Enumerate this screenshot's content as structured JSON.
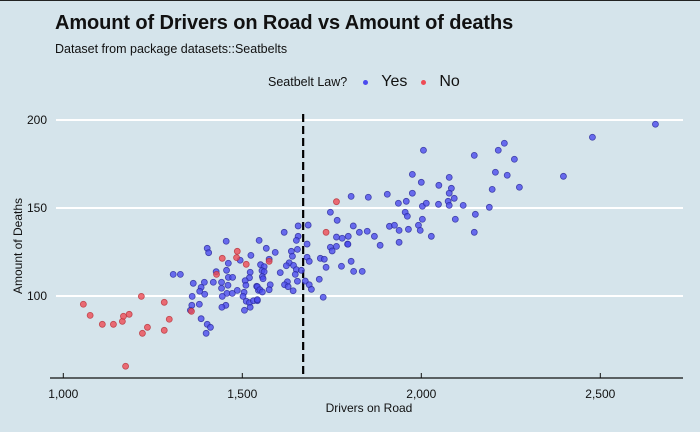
{
  "chart_data": {
    "type": "scatter",
    "title": "Amount of Drivers on Road vs Amount of deaths",
    "subtitle": "Dataset from package datasets::Seatbelts",
    "xlabel": "Drivers on Road",
    "ylabel": "Amount of Deaths",
    "xlim": [
      978,
      2720
    ],
    "ylim": [
      54,
      204
    ],
    "x_ticks": [
      1000,
      1500,
      2000,
      2500
    ],
    "x_tick_labels": [
      "1,000",
      "1,500",
      "2,000",
      "2,500"
    ],
    "y_ticks": [
      100,
      150,
      200
    ],
    "y_tick_labels": [
      "100",
      "150",
      "200"
    ],
    "grid": "horizontal major lines only",
    "legend": {
      "title": "Seatbelt Law?",
      "position": "top-center",
      "entries": [
        {
          "label": "Yes",
          "color": "#4b4bee"
        },
        {
          "label": "No",
          "color": "#ee4b55"
        }
      ]
    },
    "reference_line": {
      "orientation": "vertical",
      "x": 1670,
      "style": "dashed",
      "color": "#000000"
    },
    "series": [
      {
        "name": "Yes",
        "color": "#4b4bee",
        "points": [
          [
            1455,
            131.1
          ],
          [
            1402,
            127.1
          ],
          [
            1406,
            124.6
          ],
          [
            1494,
            120.3
          ],
          [
            1461,
            118.6
          ],
          [
            1524,
            123.1
          ],
          [
            1307,
            112.3
          ],
          [
            1327,
            112.3
          ],
          [
            1427,
            113.8
          ],
          [
            1456,
            114.6
          ],
          [
            1461,
            110.6
          ],
          [
            1473,
            110.6
          ],
          [
            1522,
            113.5
          ],
          [
            1520,
            110.4
          ],
          [
            1508,
            108.7
          ],
          [
            1363,
            107.2
          ],
          [
            1394,
            107.8
          ],
          [
            1419,
            107.8
          ],
          [
            1442,
            107.8
          ],
          [
            1385,
            104.9
          ],
          [
            1460,
            106.1
          ],
          [
            1510,
            106.1
          ],
          [
            1540,
            105.5
          ],
          [
            1381,
            102.7
          ],
          [
            1395,
            101.0
          ],
          [
            1442,
            104.4
          ],
          [
            1457,
            101.5
          ],
          [
            1472,
            101.5
          ],
          [
            1486,
            103.2
          ],
          [
            1505,
            102.1
          ],
          [
            1360,
            99.8
          ],
          [
            1444,
            99.8
          ],
          [
            1502,
            99.8
          ],
          [
            1545,
            103.2
          ],
          [
            1359,
            94.7
          ],
          [
            1380,
            95.3
          ],
          [
            1454,
            94.7
          ],
          [
            1443,
            93.6
          ],
          [
            1511,
            97.0
          ],
          [
            1520,
            96.2
          ],
          [
            1531,
            97.3
          ],
          [
            1542,
            97.3
          ],
          [
            1522,
            93.6
          ],
          [
            1506,
            91.9
          ],
          [
            1385,
            87.1
          ],
          [
            1402,
            83.9
          ],
          [
            1411,
            82.2
          ],
          [
            1399,
            78.8
          ],
          [
            1355,
            91.9
          ],
          [
            1746,
            147.6
          ],
          [
            1765,
            143.0
          ],
          [
            1810,
            139.8
          ],
          [
            1656,
            139.8
          ],
          [
            1684,
            140.3
          ],
          [
            1617,
            136.2
          ],
          [
            1656,
            133.9
          ],
          [
            1651,
            131.6
          ],
          [
            1763,
            133.5
          ],
          [
            1779,
            132.8
          ],
          [
            1794,
            129.5
          ],
          [
            1547,
            131.6
          ],
          [
            1681,
            129.5
          ],
          [
            1746,
            127.7
          ],
          [
            1763,
            128.2
          ],
          [
            1751,
            125.6
          ],
          [
            1567,
            127.1
          ],
          [
            1592,
            124.8
          ],
          [
            1637,
            125.4
          ],
          [
            1654,
            126.5
          ],
          [
            1640,
            122.6
          ],
          [
            1681,
            122.0
          ],
          [
            1687,
            119.7
          ],
          [
            1718,
            121.4
          ],
          [
            1729,
            120.9
          ],
          [
            1804,
            119.7
          ],
          [
            1575,
            120.9
          ],
          [
            1631,
            118.9
          ],
          [
            1623,
            117.2
          ],
          [
            1551,
            117.8
          ],
          [
            1561,
            116.7
          ],
          [
            1555,
            114.4
          ],
          [
            1561,
            113.8
          ],
          [
            1643,
            117.4
          ],
          [
            1651,
            115.0
          ],
          [
            1665,
            114.6
          ],
          [
            1734,
            116.3
          ],
          [
            1777,
            116.9
          ],
          [
            1811,
            114.0
          ],
          [
            1606,
            113.3
          ],
          [
            1648,
            112.3
          ],
          [
            1556,
            111.0
          ],
          [
            1558,
            109.8
          ],
          [
            1715,
            109.5
          ],
          [
            1654,
            108.4
          ],
          [
            1626,
            108.1
          ],
          [
            1618,
            106.4
          ],
          [
            1628,
            105.3
          ],
          [
            1676,
            108.5
          ],
          [
            1687,
            106.4
          ],
          [
            1578,
            106.4
          ],
          [
            1542,
            105.3
          ],
          [
            1549,
            103.6
          ],
          [
            1556,
            102.3
          ],
          [
            1575,
            103.6
          ],
          [
            1642,
            103.0
          ],
          [
            1693,
            103.8
          ],
          [
            1726,
            99.3
          ],
          [
            1542,
            97.9
          ],
          [
            1975,
            169.1
          ],
          [
            2000,
            164.6
          ],
          [
            2049,
            162.9
          ],
          [
            1804,
            156.6
          ],
          [
            1852,
            156.1
          ],
          [
            1905,
            157.8
          ],
          [
            1975,
            158.4
          ],
          [
            1936,
            152.7
          ],
          [
            1958,
            153.8
          ],
          [
            2003,
            151.0
          ],
          [
            2014,
            152.7
          ],
          [
            2048,
            152.1
          ],
          [
            1955,
            147.6
          ],
          [
            1961,
            145.3
          ],
          [
            2003,
            143.6
          ],
          [
            1911,
            139.6
          ],
          [
            1925,
            140.2
          ],
          [
            1992,
            140.2
          ],
          [
            1827,
            136.2
          ],
          [
            1849,
            136.8
          ],
          [
            1938,
            137.3
          ],
          [
            1964,
            137.9
          ],
          [
            1997,
            137.3
          ],
          [
            1869,
            133.9
          ],
          [
            2028,
            133.9
          ],
          [
            1796,
            133.9
          ],
          [
            1795,
            129.4
          ],
          [
            1885,
            128.8
          ],
          [
            1938,
            130.5
          ],
          [
            1835,
            114.0
          ],
          [
            2006,
            182.8
          ],
          [
            2148,
            179.9
          ],
          [
            2078,
            167.4
          ],
          [
            2084,
            161.2
          ],
          [
            2078,
            158.4
          ],
          [
            2092,
            155.5
          ],
          [
            2075,
            153.8
          ],
          [
            2078,
            151.5
          ],
          [
            2117,
            151.5
          ],
          [
            2095,
            143.6
          ],
          [
            2151,
            146.4
          ],
          [
            2148,
            136.2
          ],
          [
            2654,
            197.6
          ],
          [
            2478,
            190.2
          ],
          [
            2232,
            186.8
          ],
          [
            2215,
            182.8
          ],
          [
            2260,
            177.7
          ],
          [
            2207,
            170.3
          ],
          [
            2240,
            168.6
          ],
          [
            2397,
            168.0
          ],
          [
            2198,
            160.6
          ],
          [
            2274,
            161.8
          ],
          [
            2190,
            150.4
          ]
        ]
      },
      {
        "name": "No",
        "color": "#ee4b55",
        "points": [
          [
            1056,
            95.3
          ],
          [
            1075,
            89.0
          ],
          [
            1109,
            83.9
          ],
          [
            1140,
            83.9
          ],
          [
            1165,
            85.6
          ],
          [
            1168,
            88.5
          ],
          [
            1184,
            89.6
          ],
          [
            1174,
            60.1
          ],
          [
            1218,
            99.8
          ],
          [
            1221,
            78.8
          ],
          [
            1235,
            82.2
          ],
          [
            1282,
            96.4
          ],
          [
            1282,
            80.5
          ],
          [
            1296,
            86.8
          ],
          [
            1358,
            91.3
          ],
          [
            1486,
            125.4
          ],
          [
            1444,
            121.4
          ],
          [
            1484,
            121.8
          ],
          [
            1511,
            118.0
          ],
          [
            1428,
            112.3
          ],
          [
            1763,
            153.6
          ],
          [
            1734,
            136.2
          ],
          [
            1575,
            119.7
          ]
        ]
      }
    ]
  }
}
